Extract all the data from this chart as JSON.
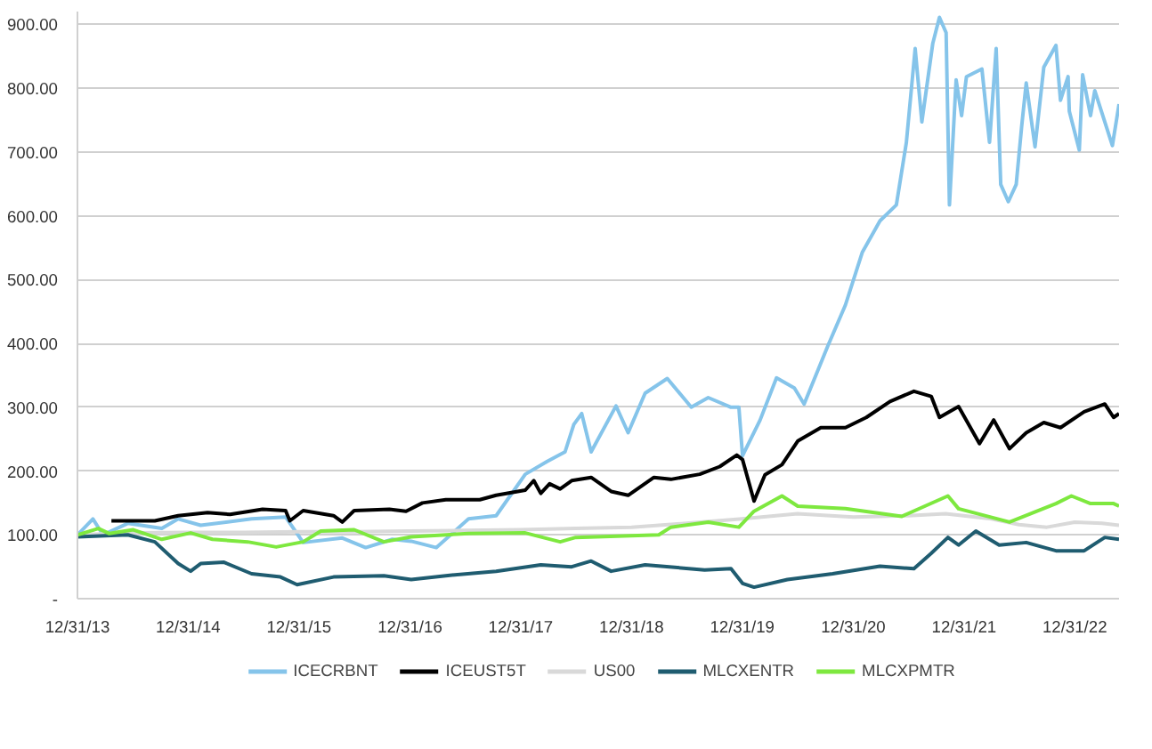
{
  "chart_data": {
    "type": "line",
    "ylim": [
      0,
      920
    ],
    "yticks": [
      {
        "value": 0,
        "label": "-"
      },
      {
        "value": 100,
        "label": "100.00"
      },
      {
        "value": 200,
        "label": "200.00"
      },
      {
        "value": 300,
        "label": "300.00"
      },
      {
        "value": 400,
        "label": "400.00"
      },
      {
        "value": 500,
        "label": "500.00"
      },
      {
        "value": 600,
        "label": "600.00"
      },
      {
        "value": 700,
        "label": "700.00"
      },
      {
        "value": 800,
        "label": "800.00"
      },
      {
        "value": 900,
        "label": "900.00"
      }
    ],
    "xlim": [
      "2013-12-31",
      "2023-05-26"
    ],
    "xticks": [
      {
        "value": "2013-12-31",
        "label": "12/31/13"
      },
      {
        "value": "2014-12-31",
        "label": "12/31/14"
      },
      {
        "value": "2015-12-31",
        "label": "12/31/15"
      },
      {
        "value": "2016-12-31",
        "label": "12/31/16"
      },
      {
        "value": "2017-12-31",
        "label": "12/31/17"
      },
      {
        "value": "2018-12-31",
        "label": "12/31/18"
      },
      {
        "value": "2019-12-31",
        "label": "12/31/19"
      },
      {
        "value": "2020-12-31",
        "label": "12/31/20"
      },
      {
        "value": "2021-12-31",
        "label": "12/31/21"
      },
      {
        "value": "2022-12-31",
        "label": "12/31/22"
      }
    ],
    "grid": "y",
    "legend": "bottom",
    "line_style": "solid",
    "series": [
      {
        "name": "ICECRBNT",
        "color": "#85c4ea",
        "x": [
          "2013-12-31",
          "2014-02-20",
          "2014-03-25",
          "2014-06-15",
          "2014-10-05",
          "2014-11-28",
          "2015-02-10",
          "2015-07-28",
          "2015-11-17",
          "2016-01-14",
          "2016-05-22",
          "2016-08-07",
          "2016-11-03",
          "2017-01-04",
          "2017-03-28",
          "2017-07-12",
          "2017-10-11",
          "2018-01-15",
          "2018-03-28",
          "2018-05-26",
          "2018-06-24",
          "2018-07-20",
          "2018-08-20",
          "2018-11-10",
          "2018-12-20",
          "2019-02-14",
          "2019-04-28",
          "2019-07-16",
          "2019-09-10",
          "2019-11-24",
          "2019-12-20",
          "2020-01-01",
          "2020-02-28",
          "2020-04-22",
          "2020-06-20",
          "2020-07-22",
          "2020-10-08",
          "2020-12-05",
          "2021-01-30",
          "2021-03-29",
          "2021-05-22",
          "2021-06-24",
          "2021-07-23",
          "2021-08-14",
          "2021-09-19",
          "2021-10-11",
          "2021-11-02",
          "2021-11-13",
          "2021-12-05",
          "2021-12-23",
          "2022-01-08",
          "2022-02-28",
          "2022-03-25",
          "2022-04-16",
          "2022-05-01",
          "2022-05-26",
          "2022-06-21",
          "2022-07-09",
          "2022-07-24",
          "2022-08-22",
          "2022-09-20",
          "2022-10-30",
          "2022-11-14",
          "2022-12-09",
          "2022-12-13",
          "2023-01-15",
          "2023-01-26",
          "2023-02-21",
          "2023-03-07",
          "2023-05-04",
          "2023-05-26"
        ],
        "values": [
          100,
          125,
          100,
          118,
          110,
          125,
          115,
          125,
          128,
          88,
          95,
          80,
          93,
          90,
          80,
          125,
          130,
          195,
          215,
          230,
          273,
          290,
          230,
          302,
          260,
          322,
          345,
          300,
          315,
          300,
          300,
          224,
          280,
          346,
          330,
          305,
          396,
          460,
          543,
          592,
          617,
          715,
          862,
          747,
          870,
          911,
          887,
          617,
          813,
          757,
          818,
          830,
          715,
          862,
          649,
          622,
          649,
          740,
          808,
          708,
          833,
          867,
          781,
          818,
          764,
          703,
          821,
          757,
          796,
          710,
          775
        ]
      },
      {
        "name": "ICEUST5T",
        "color": "#000000",
        "x": [
          "2014-04-22",
          "2014-09-12",
          "2014-11-28",
          "2015-03-05",
          "2015-05-18",
          "2015-09-02",
          "2015-11-17",
          "2015-12-01",
          "2016-01-14",
          "2016-04-23",
          "2016-05-22",
          "2016-06-30",
          "2016-10-24",
          "2016-12-18",
          "2017-02-10",
          "2017-04-28",
          "2017-08-18",
          "2017-10-11",
          "2018-01-15",
          "2018-02-12",
          "2018-03-07",
          "2018-04-05",
          "2018-05-10",
          "2018-06-17",
          "2018-08-20",
          "2018-10-25",
          "2018-12-20",
          "2019-03-15",
          "2019-05-10",
          "2019-08-13",
          "2019-10-18",
          "2019-12-13",
          "2020-01-01",
          "2020-02-08",
          "2020-03-15",
          "2020-05-10",
          "2020-07-01",
          "2020-09-15",
          "2020-12-05",
          "2021-02-12",
          "2021-05-01",
          "2021-07-19",
          "2021-09-14",
          "2021-10-11",
          "2021-12-13",
          "2022-02-20",
          "2022-04-08",
          "2022-05-30",
          "2022-07-24",
          "2022-09-20",
          "2022-11-14",
          "2023-01-31",
          "2023-04-09",
          "2023-05-08",
          "2023-05-26"
        ],
        "values": [
          122,
          122,
          130,
          135,
          132,
          140,
          138,
          122,
          138,
          130,
          120,
          138,
          140,
          137,
          150,
          155,
          155,
          162,
          170,
          185,
          165,
          180,
          172,
          185,
          190,
          168,
          162,
          190,
          187,
          195,
          207,
          225,
          218,
          153,
          194,
          210,
          247,
          268,
          268,
          284,
          309,
          325,
          317,
          284,
          301,
          243,
          280,
          235,
          260,
          276,
          268,
          293,
          305,
          284,
          290
        ]
      },
      {
        "name": "US00",
        "color": "#d9d9d9",
        "x": [
          "2013-12-31",
          "2014-06-30",
          "2014-12-31",
          "2015-06-30",
          "2015-12-31",
          "2016-06-30",
          "2016-12-31",
          "2017-06-30",
          "2017-12-31",
          "2018-06-30",
          "2018-12-31",
          "2019-06-30",
          "2019-12-31",
          "2020-06-30",
          "2020-12-31",
          "2021-06-30",
          "2021-10-31",
          "2022-03-31",
          "2022-06-30",
          "2022-09-30",
          "2022-12-31",
          "2023-03-31",
          "2023-05-26"
        ],
        "values": [
          100,
          103,
          104,
          104,
          105,
          105,
          106,
          107,
          108,
          110,
          112,
          118,
          125,
          133,
          128,
          130,
          133,
          125,
          116,
          112,
          120,
          118,
          115
        ]
      },
      {
        "name": "MLCXENTR",
        "color": "#1f5c70",
        "x": [
          "2013-12-31",
          "2014-06-15",
          "2014-09-12",
          "2014-11-28",
          "2015-01-08",
          "2015-02-10",
          "2015-04-28",
          "2015-07-28",
          "2015-10-31",
          "2015-12-25",
          "2016-04-23",
          "2016-10-06",
          "2017-01-04",
          "2017-04-28",
          "2017-10-11",
          "2018-03-07",
          "2018-06-17",
          "2018-08-20",
          "2018-10-25",
          "2019-02-14",
          "2019-08-29",
          "2019-11-24",
          "2020-01-01",
          "2020-02-08",
          "2020-05-28",
          "2020-10-24",
          "2021-03-29",
          "2021-07-19",
          "2021-09-14",
          "2021-11-08",
          "2021-12-13",
          "2022-02-08",
          "2022-04-26",
          "2022-07-24",
          "2022-10-30",
          "2023-01-31",
          "2023-04-09",
          "2023-05-26"
        ],
        "values": [
          97,
          100,
          89,
          55,
          43,
          55,
          57,
          39,
          34,
          22,
          34,
          36,
          30,
          36,
          43,
          53,
          50,
          59,
          43,
          53,
          45,
          47,
          24,
          18,
          30,
          39,
          51,
          47,
          71,
          96,
          84,
          106,
          84,
          88,
          75,
          75,
          96,
          93
        ]
      },
      {
        "name": "MLCXPMTR",
        "color": "#7ee83f",
        "x": [
          "2013-12-31",
          "2014-03-10",
          "2014-04-15",
          "2014-07-03",
          "2014-10-05",
          "2015-01-08",
          "2015-03-21",
          "2015-07-15",
          "2015-10-17",
          "2016-01-14",
          "2016-03-12",
          "2016-06-30",
          "2016-10-06",
          "2017-01-04",
          "2017-07-12",
          "2018-01-15",
          "2018-05-10",
          "2018-06-30",
          "2019-03-31",
          "2019-05-10",
          "2019-09-10",
          "2019-12-20",
          "2020-02-08",
          "2020-05-10",
          "2020-07-01",
          "2020-12-05",
          "2021-06-09",
          "2021-11-08",
          "2021-12-13",
          "2022-05-30",
          "2022-10-30",
          "2022-12-20",
          "2023-02-21",
          "2023-05-08",
          "2023-05-26"
        ],
        "values": [
          100,
          110,
          102,
          108,
          93,
          103,
          93,
          89,
          81,
          89,
          106,
          108,
          89,
          97,
          102,
          103,
          89,
          96,
          100,
          112,
          120,
          112,
          137,
          161,
          145,
          141,
          129,
          161,
          141,
          120,
          149,
          161,
          149,
          149,
          145
        ]
      }
    ]
  }
}
